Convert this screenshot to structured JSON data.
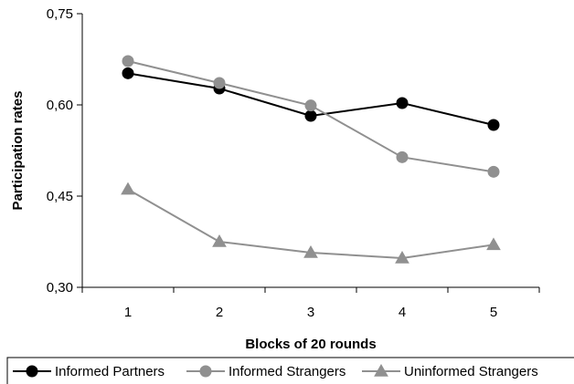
{
  "chart_data": {
    "type": "line",
    "xlabel": "Blocks of 20 rounds",
    "ylabel": "Participation rates",
    "categories": [
      "1",
      "2",
      "3",
      "4",
      "5"
    ],
    "ylim": [
      0.3,
      0.75
    ],
    "yticks": [
      {
        "value": 0.3,
        "label": "0,30"
      },
      {
        "value": 0.45,
        "label": "0,45"
      },
      {
        "value": 0.6,
        "label": "0,60"
      },
      {
        "value": 0.75,
        "label": "0,75"
      }
    ],
    "grid": false,
    "legend_position": "bottom",
    "series": [
      {
        "name": "Informed Partners",
        "marker": "circle",
        "color": "#000000",
        "values": [
          0.652,
          0.627,
          0.582,
          0.603,
          0.567
        ]
      },
      {
        "name": "Informed Strangers",
        "marker": "circle",
        "color": "#909090",
        "values": [
          0.672,
          0.636,
          0.599,
          0.514,
          0.49
        ]
      },
      {
        "name": "Uninformed Strangers",
        "marker": "triangle",
        "color": "#909090",
        "values": [
          0.461,
          0.375,
          0.357,
          0.348,
          0.37
        ]
      }
    ]
  }
}
